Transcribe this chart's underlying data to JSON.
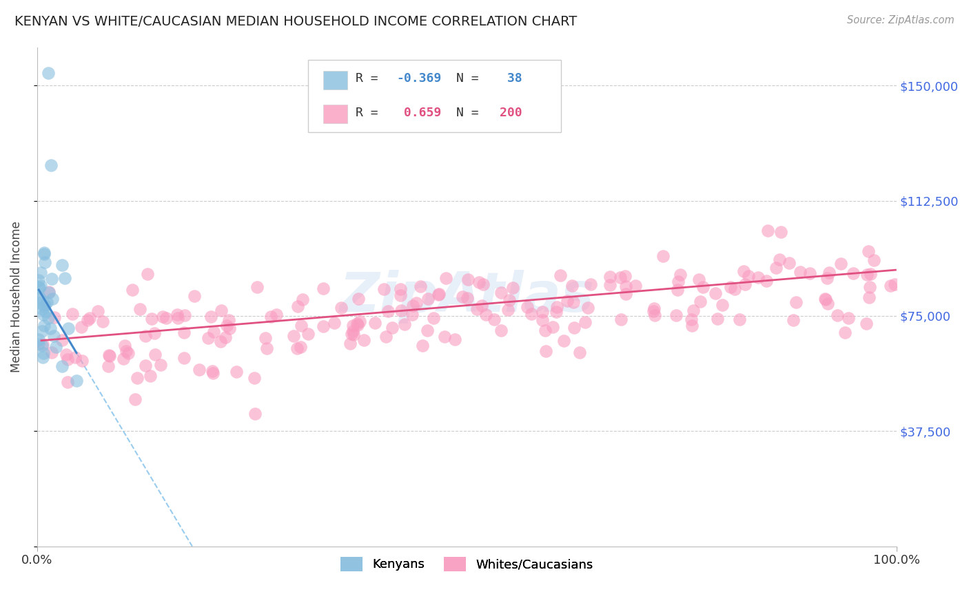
{
  "title": "KENYAN VS WHITE/CAUCASIAN MEDIAN HOUSEHOLD INCOME CORRELATION CHART",
  "source": "Source: ZipAtlas.com",
  "ylabel": "Median Household Income",
  "xlim": [
    0,
    1.0
  ],
  "ylim": [
    0,
    162500
  ],
  "yticks": [
    0,
    37500,
    75000,
    112500,
    150000
  ],
  "ytick_labels": [
    "",
    "$37,500",
    "$75,000",
    "$112,500",
    "$150,000"
  ],
  "xtick_labels": [
    "0.0%",
    "100.0%"
  ],
  "kenyan_R": -0.369,
  "kenyan_N": 38,
  "white_R": 0.659,
  "white_N": 200,
  "kenyan_color": "#87bedf",
  "white_color": "#f99bbf",
  "kenyan_line_color": "#4488cc",
  "white_line_color": "#e05080",
  "kenyan_dash_color": "#99ccee",
  "bg_color": "#ffffff",
  "grid_color": "#cccccc",
  "ytick_label_color": "#4169e1",
  "watermark_color": "#c5d8ee",
  "legend_border_color": "#cccccc"
}
